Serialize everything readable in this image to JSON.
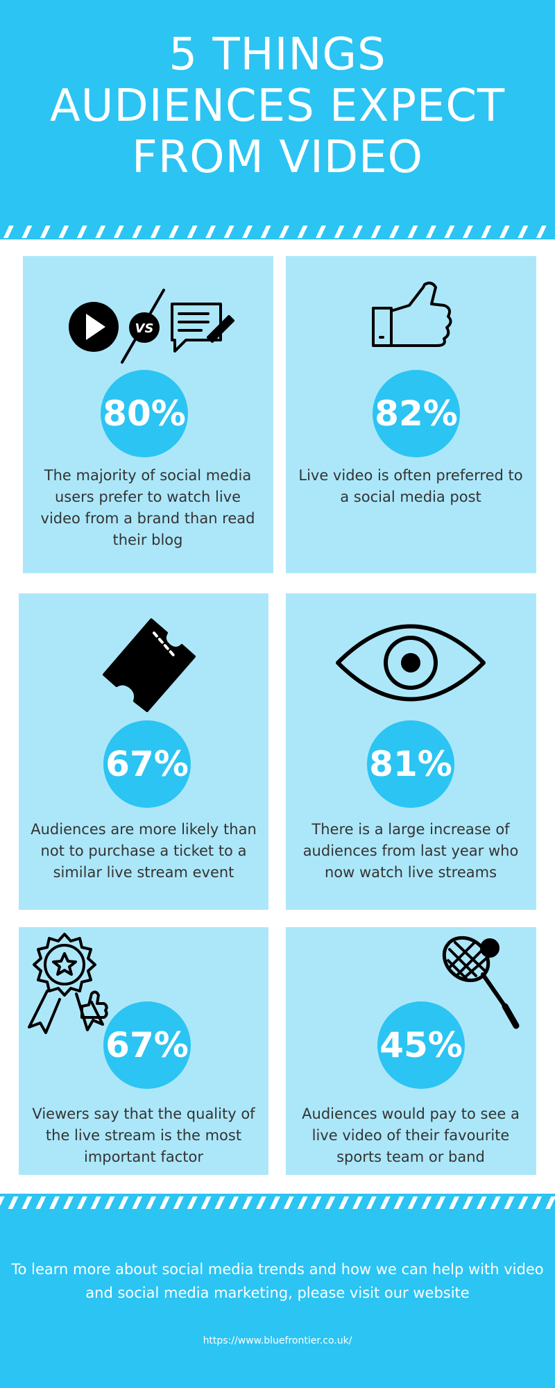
{
  "header": {
    "title_lines": [
      "5 THINGS",
      "AUDIENCES EXPECT",
      "FROM VIDEO"
    ]
  },
  "cards": [
    {
      "stat": "80%",
      "text": "The majority of social media users prefer to watch live video from a brand than read their blog"
    },
    {
      "stat": "82%",
      "text": "Live video is often preferred to a social media post"
    },
    {
      "stat": "67%",
      "text": "Audiences are more likely than not to purchase a ticket to a similar live stream event"
    },
    {
      "stat": "81%",
      "text": "There is a large increase of audiences from last year who now watch live streams"
    },
    {
      "stat": "67%",
      "text": "Viewers say that the quality of the live stream is the most important factor"
    },
    {
      "stat": "45%",
      "text": "Audiences would pay to see a live video of their favourite sports team or band"
    }
  ],
  "icons": {
    "vs": "VS"
  },
  "footer": {
    "text": "To learn more about social media trends and how we can help with video and social media marketing, please visit our website",
    "url": "https://www.bluefrontier.co.uk/"
  }
}
